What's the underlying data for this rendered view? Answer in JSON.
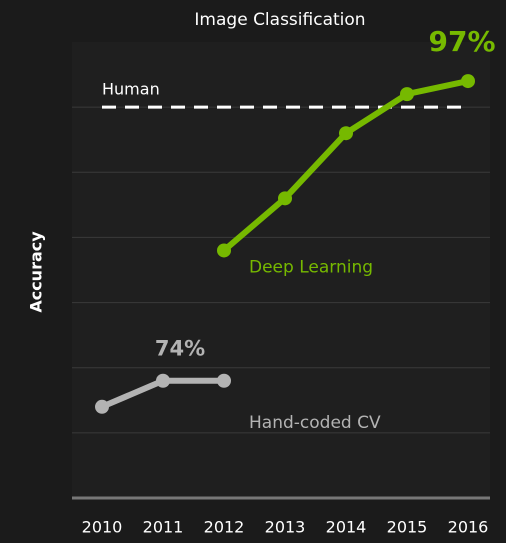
{
  "chart_data": {
    "type": "line",
    "title": "Image Classification",
    "y_label": "Accuracy",
    "categories": [
      "2010",
      "2011",
      "2012",
      "2013",
      "2014",
      "2015",
      "2016"
    ],
    "series": [
      {
        "name": "Hand-coded CV",
        "color": "#b3b3b3",
        "values": [
          72,
          74,
          74,
          null,
          null,
          null,
          null
        ],
        "value_labels": [
          null,
          "74%",
          null,
          null,
          null,
          null,
          null
        ]
      },
      {
        "name": "Deep Learning",
        "color": "#76b900",
        "values": [
          null,
          null,
          84,
          88,
          93,
          96,
          97
        ],
        "value_labels": [
          null,
          null,
          null,
          null,
          null,
          null,
          "97%"
        ]
      }
    ],
    "reference": {
      "label": "Human",
      "value": 95,
      "color": "#ffffff"
    },
    "ylim": [
      65,
      100
    ],
    "yticks": [
      70,
      75,
      80,
      85,
      90,
      95
    ],
    "grid": true
  }
}
